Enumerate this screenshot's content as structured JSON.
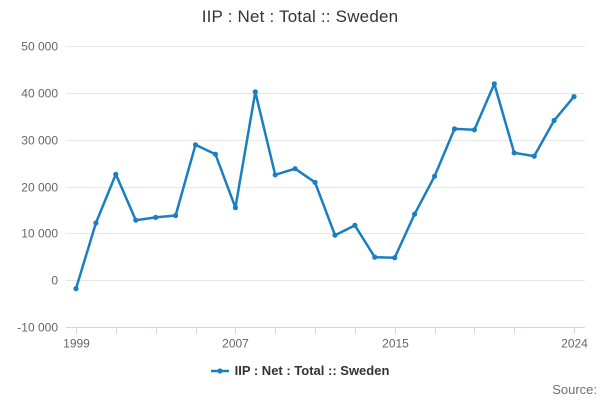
{
  "title": "IIP : Net : Total :: Sweden",
  "legend": {
    "label": "IIP : Net : Total :: Sweden"
  },
  "source": {
    "label": "Source:"
  },
  "colors": {
    "line": "#1a7fc1",
    "axis": "#ccd6eb",
    "grid": "#e6e6e6",
    "tick_label": "#666666",
    "title": "#333333",
    "legend_text": "#333333",
    "source_text": "#707070"
  },
  "chart_data": {
    "type": "line",
    "title": "IIP : Net : Total :: Sweden",
    "series": [
      {
        "name": "IIP : Net : Total :: Sweden",
        "x": [
          1999,
          2000,
          2001,
          2002,
          2003,
          2004,
          2005,
          2006,
          2007,
          2008,
          2009,
          2010,
          2011,
          2012,
          2013,
          2014,
          2015,
          2016,
          2017,
          2018,
          2019,
          2020,
          2021,
          2022,
          2023,
          2024
        ],
        "values": [
          -1800,
          12200,
          22600,
          12800,
          13400,
          13800,
          28900,
          26900,
          15500,
          40200,
          22500,
          23800,
          20900,
          9600,
          11700,
          4900,
          4800,
          14100,
          22200,
          32300,
          32100,
          41900,
          27200,
          26500,
          34100,
          39200
        ]
      }
    ],
    "xlabel": "",
    "ylabel": "",
    "xlim": [
      1999,
      2024
    ],
    "ylim": [
      -10000,
      50000
    ],
    "grid": "horizontal",
    "legend_position": "bottom-center",
    "y_ticks": [
      {
        "value": 50000,
        "label": "50 000"
      },
      {
        "value": 40000,
        "label": "40 000"
      },
      {
        "value": 30000,
        "label": "30 000"
      },
      {
        "value": 20000,
        "label": "20 000"
      },
      {
        "value": 10000,
        "label": "10 000"
      },
      {
        "value": 0,
        "label": "0"
      },
      {
        "value": -10000,
        "label": "-10 000"
      }
    ],
    "x_ticks": [
      {
        "year": 1999,
        "label": "1999"
      },
      {
        "year": 2001,
        "label": ""
      },
      {
        "year": 2003,
        "label": ""
      },
      {
        "year": 2005,
        "label": ""
      },
      {
        "year": 2007,
        "label": "2007"
      },
      {
        "year": 2009,
        "label": ""
      },
      {
        "year": 2011,
        "label": ""
      },
      {
        "year": 2013,
        "label": ""
      },
      {
        "year": 2015,
        "label": "2015"
      },
      {
        "year": 2017,
        "label": ""
      },
      {
        "year": 2019,
        "label": ""
      },
      {
        "year": 2021,
        "label": ""
      },
      {
        "year": 2024,
        "label": "2024"
      }
    ]
  }
}
